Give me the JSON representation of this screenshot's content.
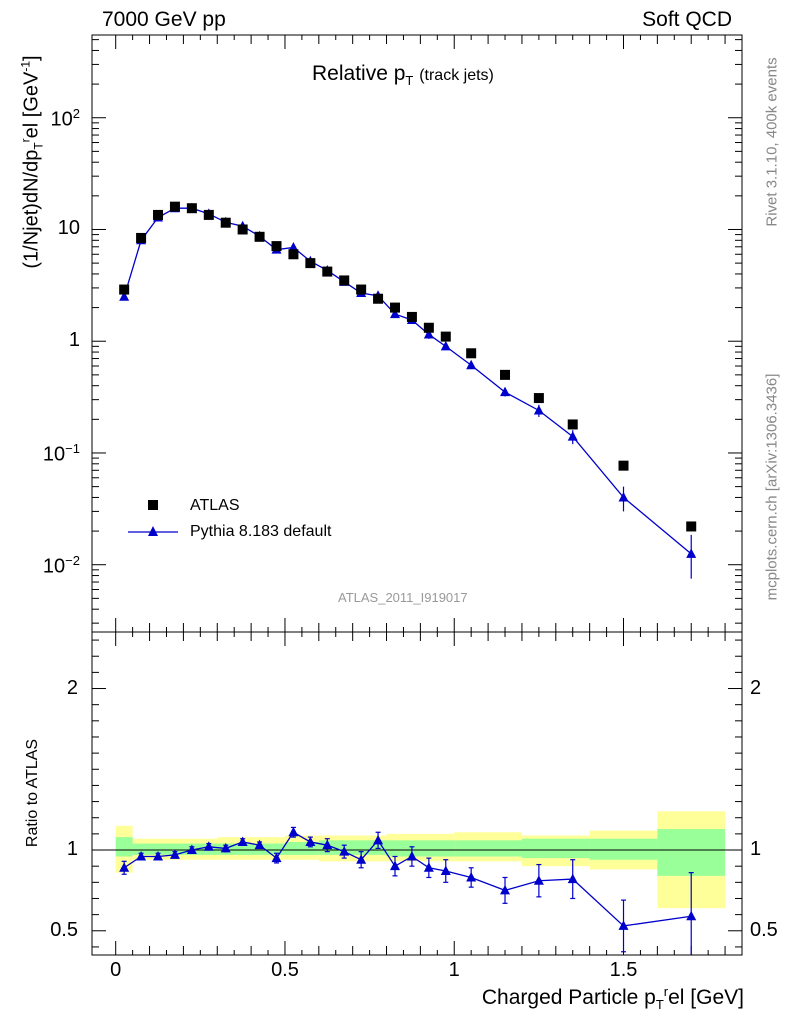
{
  "header": {
    "left": "7000 GeV pp",
    "right": "Soft QCD"
  },
  "side_labels": {
    "rivet": "Rivet 3.1.10,  400k events",
    "mcplots": "mcplots.cern.ch [arXiv:1306.3436]"
  },
  "colors": {
    "data": "#000000",
    "mc": "#0000cc",
    "band_green": "#99ff99",
    "band_yellow": "#ffff99"
  },
  "chart_data": [
    {
      "type": "scatter",
      "title": "Relative p_T (track jets)",
      "title_main": "Relative p",
      "title_sub": "T",
      "title_suffix": "(track jets)",
      "ylabel": "(1/Njet)dN/dp_T^rel [GeV^-1]",
      "ylabel_parts": {
        "a": "(1/Njet)dN/dp",
        "b": "T",
        "c": "r",
        "d": "el [GeV",
        "e": "-1",
        "f": "]"
      },
      "yscale": "log",
      "ylim": [
        0.0025,
        550
      ],
      "xlim": [
        -0.07,
        1.85
      ],
      "yticks": [
        "10^-2",
        "10^-1",
        "1",
        "10",
        "10^2"
      ],
      "ytick_labels": [
        {
          "value": 0.01,
          "base": "10",
          "exp": "−2"
        },
        {
          "value": 0.1,
          "base": "10",
          "exp": "−1"
        },
        {
          "value": 1,
          "base": "1",
          "exp": ""
        },
        {
          "value": 10,
          "base": "10",
          "exp": ""
        },
        {
          "value": 100,
          "base": "10",
          "exp": "2"
        }
      ],
      "analysis_id": "ATLAS_2011_I919017",
      "legend_position": "lower-left",
      "series": [
        {
          "name": "ATLAS",
          "marker": "square",
          "x": [
            0.025,
            0.075,
            0.125,
            0.175,
            0.225,
            0.275,
            0.325,
            0.375,
            0.425,
            0.475,
            0.525,
            0.575,
            0.625,
            0.675,
            0.725,
            0.775,
            0.825,
            0.875,
            0.925,
            0.975,
            1.05,
            1.15,
            1.25,
            1.35,
            1.5,
            1.7
          ],
          "y": [
            2.9,
            8.4,
            13.5,
            16.0,
            15.5,
            13.5,
            11.5,
            10.0,
            8.6,
            7.1,
            6.0,
            5.0,
            4.2,
            3.5,
            2.9,
            2.4,
            2.0,
            1.65,
            1.32,
            1.1,
            0.78,
            0.5,
            0.31,
            0.18,
            0.077,
            0.022
          ]
        },
        {
          "name": "Pythia 8.183 default",
          "marker": "triangle",
          "x": [
            0.025,
            0.075,
            0.125,
            0.175,
            0.225,
            0.275,
            0.325,
            0.375,
            0.425,
            0.475,
            0.525,
            0.575,
            0.625,
            0.675,
            0.725,
            0.775,
            0.825,
            0.875,
            0.925,
            0.975,
            1.05,
            1.15,
            1.25,
            1.35,
            1.5,
            1.7
          ],
          "y": [
            2.5,
            8.0,
            12.8,
            15.5,
            15.5,
            13.8,
            11.6,
            10.7,
            8.7,
            6.6,
            6.9,
            5.2,
            4.3,
            3.4,
            2.7,
            2.55,
            1.75,
            1.55,
            1.15,
            0.9,
            0.61,
            0.35,
            0.24,
            0.14,
            0.04,
            0.0125
          ],
          "yerr_low": [
            0.1,
            0.2,
            0.3,
            0.3,
            0.3,
            0.3,
            0.3,
            0.3,
            0.3,
            0.25,
            0.25,
            0.2,
            0.2,
            0.15,
            0.15,
            0.15,
            0.1,
            0.1,
            0.1,
            0.06,
            0.04,
            0.03,
            0.03,
            0.02,
            0.01,
            0.005
          ],
          "yerr_high": [
            0.1,
            0.2,
            0.3,
            0.3,
            0.3,
            0.3,
            0.3,
            0.3,
            0.3,
            0.25,
            0.25,
            0.2,
            0.2,
            0.15,
            0.15,
            0.15,
            0.1,
            0.1,
            0.1,
            0.06,
            0.04,
            0.03,
            0.03,
            0.02,
            0.01,
            0.006
          ]
        }
      ]
    },
    {
      "type": "scatter",
      "title": "",
      "ylabel": "Ratio to ATLAS",
      "xlabel": "Charged Particle p_T^rel [GeV]",
      "xlabel_parts": {
        "a": "Charged Particle p",
        "b": "T",
        "c": "r",
        "d": "el [GeV]"
      },
      "ylim": [
        0.35,
        2.35
      ],
      "xlim": [
        -0.07,
        1.85
      ],
      "yticks": [
        0.5,
        1,
        2
      ],
      "ytick_labels": [
        "0.5",
        "1",
        "2"
      ],
      "xticks": [
        0,
        0.5,
        1,
        1.5
      ],
      "xtick_labels": [
        "0",
        "0.5",
        "1",
        "1.5"
      ],
      "reference_line": 1,
      "bins": [
        {
          "x0": 0.0,
          "x1": 0.05,
          "g_lo": 0.96,
          "g_hi": 1.08,
          "y_lo": 0.86,
          "y_hi": 1.15
        },
        {
          "x0": 0.05,
          "x1": 0.3,
          "g_lo": 0.97,
          "g_hi": 1.04,
          "y_lo": 0.94,
          "y_hi": 1.07
        },
        {
          "x0": 0.3,
          "x1": 0.5,
          "g_lo": 0.97,
          "g_hi": 1.04,
          "y_lo": 0.94,
          "y_hi": 1.08
        },
        {
          "x0": 0.5,
          "x1": 0.6,
          "g_lo": 0.97,
          "g_hi": 1.05,
          "y_lo": 0.94,
          "y_hi": 1.09
        },
        {
          "x0": 0.6,
          "x1": 0.8,
          "g_lo": 0.97,
          "g_hi": 1.06,
          "y_lo": 0.93,
          "y_hi": 1.09
        },
        {
          "x0": 0.8,
          "x1": 1.0,
          "g_lo": 0.96,
          "g_hi": 1.06,
          "y_lo": 0.93,
          "y_hi": 1.1
        },
        {
          "x0": 1.0,
          "x1": 1.2,
          "g_lo": 0.96,
          "g_hi": 1.06,
          "y_lo": 0.93,
          "y_hi": 1.11
        },
        {
          "x0": 1.2,
          "x1": 1.4,
          "g_lo": 0.95,
          "g_hi": 1.07,
          "y_lo": 0.9,
          "y_hi": 1.09
        },
        {
          "x0": 1.4,
          "x1": 1.6,
          "g_lo": 0.94,
          "g_hi": 1.07,
          "y_lo": 0.88,
          "y_hi": 1.12
        },
        {
          "x0": 1.6,
          "x1": 1.8,
          "g_lo": 0.84,
          "g_hi": 1.13,
          "y_lo": 0.64,
          "y_hi": 1.24
        }
      ],
      "series": [
        {
          "name": "Pythia 8.183 default",
          "x": [
            0.025,
            0.075,
            0.125,
            0.175,
            0.225,
            0.275,
            0.325,
            0.375,
            0.425,
            0.475,
            0.525,
            0.575,
            0.625,
            0.675,
            0.725,
            0.775,
            0.825,
            0.875,
            0.925,
            0.975,
            1.05,
            1.15,
            1.25,
            1.35,
            1.5,
            1.7
          ],
          "y": [
            0.89,
            0.96,
            0.96,
            0.97,
            1.0,
            1.02,
            1.01,
            1.05,
            1.03,
            0.95,
            1.11,
            1.05,
            1.03,
            0.99,
            0.94,
            1.06,
            0.9,
            0.96,
            0.89,
            0.87,
            0.83,
            0.75,
            0.81,
            0.82,
            0.53,
            0.59
          ],
          "err": [
            0.04,
            0.02,
            0.02,
            0.02,
            0.02,
            0.02,
            0.02,
            0.02,
            0.02,
            0.03,
            0.03,
            0.03,
            0.04,
            0.04,
            0.05,
            0.05,
            0.06,
            0.06,
            0.06,
            0.07,
            0.06,
            0.08,
            0.1,
            0.12,
            0.16,
            0.27
          ]
        }
      ]
    }
  ]
}
